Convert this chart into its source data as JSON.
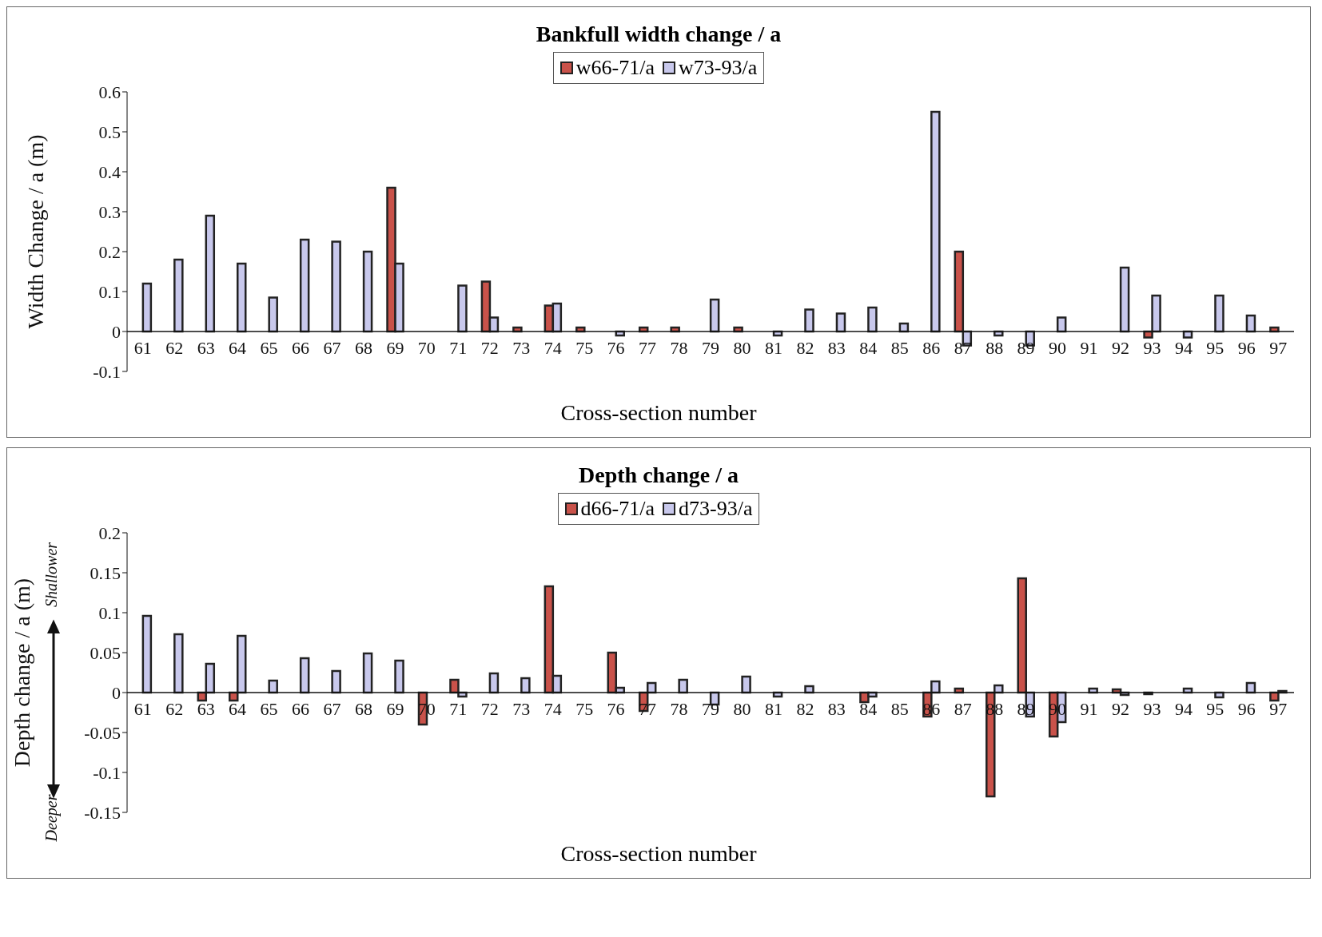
{
  "chart_data": [
    {
      "type": "bar",
      "title": "Bankfull width change / a",
      "xlabel": "Cross-section number",
      "ylabel": "Width Change / a (m)",
      "categories": [
        "61",
        "62",
        "63",
        "64",
        "65",
        "66",
        "67",
        "68",
        "69",
        "70",
        "71",
        "72",
        "73",
        "74",
        "75",
        "76",
        "77",
        "78",
        "79",
        "80",
        "81",
        "82",
        "83",
        "84",
        "85",
        "86",
        "87",
        "88",
        "89",
        "90",
        "91",
        "92",
        "93",
        "94",
        "95",
        "96",
        "97"
      ],
      "series": [
        {
          "name": "w66-71/a",
          "color": "#c9524a",
          "values": [
            null,
            null,
            null,
            null,
            null,
            null,
            null,
            null,
            0.36,
            null,
            null,
            0.125,
            0.01,
            0.065,
            0.01,
            null,
            0.01,
            0.01,
            null,
            0.01,
            null,
            null,
            null,
            null,
            null,
            null,
            0.2,
            null,
            null,
            null,
            null,
            null,
            -0.015,
            null,
            null,
            null,
            0.01
          ]
        },
        {
          "name": "w73-93/a",
          "color": "#c8c8ec",
          "values": [
            0.12,
            0.18,
            0.29,
            0.17,
            0.085,
            0.23,
            0.225,
            0.2,
            0.17,
            null,
            0.115,
            0.035,
            null,
            0.07,
            null,
            -0.01,
            null,
            null,
            0.08,
            null,
            -0.01,
            0.055,
            0.045,
            0.06,
            0.02,
            0.55,
            -0.035,
            -0.01,
            -0.035,
            0.035,
            null,
            0.16,
            0.09,
            -0.015,
            0.09,
            0.04,
            null
          ]
        }
      ],
      "ylim": [
        -0.1,
        0.6
      ],
      "yticks": [
        -0.1,
        0,
        0.1,
        0.2,
        0.3,
        0.4,
        0.5,
        0.6
      ],
      "legend": "top"
    },
    {
      "type": "bar",
      "title": "Depth change / a",
      "xlabel": "Cross-section number",
      "ylabel": "Depth change / a (m)",
      "categories": [
        "61",
        "62",
        "63",
        "64",
        "65",
        "66",
        "67",
        "68",
        "69",
        "70",
        "71",
        "72",
        "73",
        "74",
        "75",
        "76",
        "77",
        "78",
        "79",
        "80",
        "81",
        "82",
        "83",
        "84",
        "85",
        "86",
        "87",
        "88",
        "89",
        "90",
        "91",
        "92",
        "93",
        "94",
        "95",
        "96",
        "97"
      ],
      "series": [
        {
          "name": "d66-71/a",
          "color": "#c9524a",
          "values": [
            null,
            null,
            -0.01,
            -0.01,
            null,
            null,
            null,
            null,
            null,
            -0.04,
            0.016,
            null,
            null,
            0.133,
            null,
            0.05,
            -0.023,
            null,
            null,
            null,
            null,
            null,
            null,
            -0.012,
            null,
            -0.03,
            0.005,
            -0.13,
            0.143,
            -0.055,
            null,
            0.004,
            -0.002,
            null,
            null,
            null,
            -0.01
          ]
        },
        {
          "name": "d73-93/a",
          "color": "#c8c8ec",
          "values": [
            0.096,
            0.073,
            0.036,
            0.071,
            0.015,
            0.043,
            0.027,
            0.049,
            0.04,
            null,
            -0.005,
            0.024,
            0.018,
            0.021,
            null,
            0.006,
            0.012,
            0.016,
            -0.015,
            0.02,
            -0.005,
            0.008,
            null,
            -0.005,
            null,
            0.014,
            null,
            0.009,
            -0.03,
            -0.037,
            0.005,
            -0.003,
            null,
            0.005,
            -0.006,
            0.012,
            0.002
          ]
        }
      ],
      "ylim": [
        -0.15,
        0.2
      ],
      "yticks": [
        -0.15,
        -0.1,
        -0.05,
        0,
        0.05,
        0.1,
        0.15,
        0.2
      ],
      "legend": "top",
      "annotations": [
        "Shallower",
        "Deeper"
      ]
    }
  ]
}
